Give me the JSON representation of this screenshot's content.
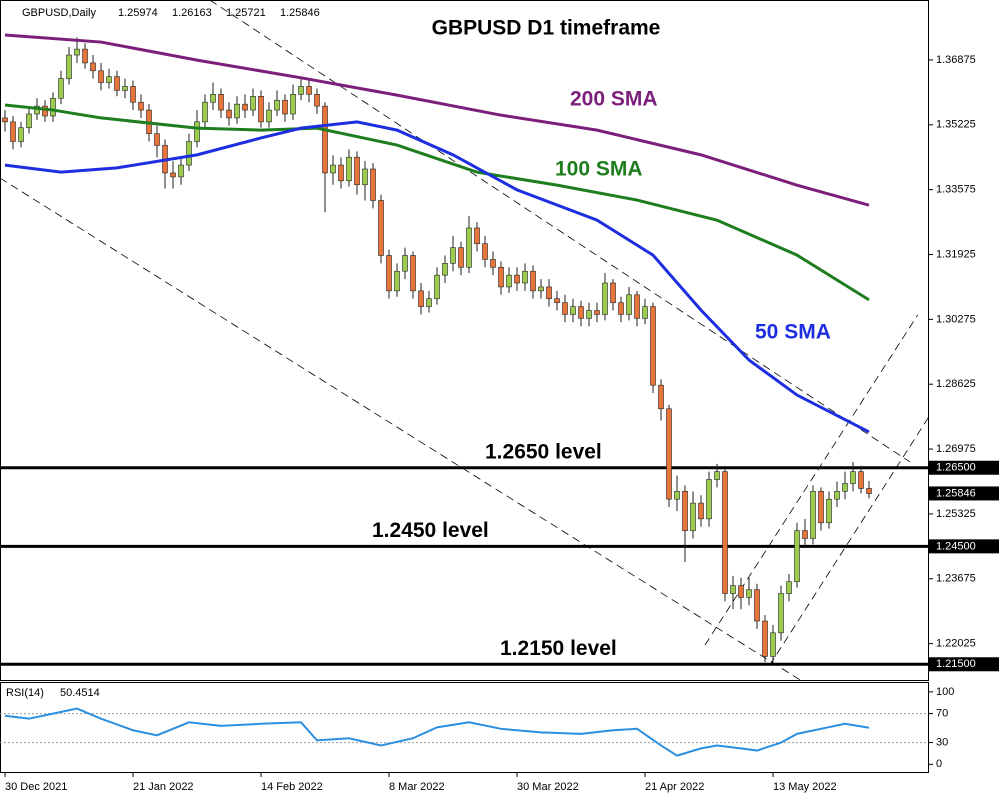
{
  "chart_data": [
    {
      "type": "candlestick",
      "symbol": "GBPUSD,Daily",
      "title": "GBPUSD D1 timeframe",
      "categories": [
        "30 Dec 2021",
        null,
        null,
        null,
        null,
        null,
        null,
        null,
        null,
        null,
        null,
        null,
        null,
        null,
        null,
        null,
        "21 Jan 2022",
        null,
        null,
        null,
        null,
        null,
        null,
        null,
        null,
        null,
        null,
        null,
        null,
        null,
        null,
        null,
        "14 Feb 2022",
        null,
        null,
        null,
        null,
        null,
        null,
        null,
        null,
        null,
        null,
        null,
        null,
        null,
        null,
        null,
        "8 Mar 2022",
        null,
        null,
        null,
        null,
        null,
        null,
        null,
        null,
        null,
        null,
        null,
        null,
        null,
        null,
        null,
        "30 Mar 2022",
        null,
        null,
        null,
        null,
        null,
        null,
        null,
        null,
        null,
        null,
        null,
        null,
        null,
        null,
        null,
        "21 Apr 2022",
        null,
        null,
        null,
        null,
        null,
        null,
        null,
        null,
        null,
        null,
        null,
        null,
        null,
        null,
        null,
        "13 May 2022",
        null,
        null,
        null,
        null,
        null,
        null,
        null,
        null,
        null,
        null,
        null,
        null
      ],
      "xlim": [
        -0.625,
        115.375
      ],
      "open": [
        1.354,
        1.353,
        1.348,
        1.3515,
        1.355,
        1.357,
        1.3545,
        1.359,
        1.364,
        1.37,
        1.3715,
        1.368,
        1.366,
        1.363,
        1.3645,
        1.361,
        1.362,
        1.358,
        1.356,
        1.35,
        1.347,
        1.34,
        1.339,
        1.342,
        1.348,
        1.353,
        1.358,
        1.36,
        1.356,
        1.354,
        1.3575,
        1.356,
        1.3595,
        1.353,
        1.356,
        1.3585,
        1.355,
        1.36,
        1.362,
        1.36,
        1.357,
        1.34,
        1.342,
        1.338,
        1.344,
        1.337,
        1.341,
        1.333,
        1.319,
        1.31,
        1.315,
        1.319,
        1.31,
        1.306,
        1.308,
        1.314,
        1.317,
        1.321,
        1.316,
        1.326,
        1.322,
        1.318,
        1.316,
        1.311,
        1.314,
        1.312,
        1.315,
        1.31,
        1.311,
        1.308,
        1.307,
        1.304,
        1.306,
        1.303,
        1.305,
        1.304,
        1.312,
        1.307,
        1.304,
        1.309,
        1.303,
        1.306,
        1.286,
        1.28,
        1.257,
        1.259,
        1.249,
        1.256,
        1.252,
        1.262,
        1.264,
        1.233,
        1.235,
        1.232,
        1.234,
        1.226,
        1.217,
        1.223,
        1.233,
        1.236,
        1.249,
        1.247,
        1.259,
        1.251,
        1.257,
        1.259,
        1.261,
        1.264,
        1.25974
      ],
      "high": [
        1.356,
        1.3545,
        1.353,
        1.357,
        1.359,
        1.3585,
        1.3605,
        1.366,
        1.372,
        1.3745,
        1.373,
        1.37,
        1.368,
        1.3665,
        1.366,
        1.364,
        1.3635,
        1.36,
        1.3575,
        1.352,
        1.3485,
        1.343,
        1.344,
        1.35,
        1.356,
        1.36,
        1.363,
        1.3615,
        1.358,
        1.3595,
        1.36,
        1.3615,
        1.361,
        1.358,
        1.361,
        1.36,
        1.3625,
        1.3645,
        1.364,
        1.3615,
        1.358,
        1.3445,
        1.344,
        1.346,
        1.3455,
        1.343,
        1.3425,
        1.3345,
        1.3205,
        1.317,
        1.321,
        1.32,
        1.312,
        1.31,
        1.316,
        1.319,
        1.324,
        1.3225,
        1.329,
        1.3275,
        1.324,
        1.32,
        1.3175,
        1.316,
        1.316,
        1.317,
        1.3165,
        1.313,
        1.313,
        1.31,
        1.309,
        1.308,
        1.3075,
        1.307,
        1.307,
        1.3145,
        1.313,
        1.3085,
        1.311,
        1.31,
        1.308,
        1.307,
        1.2875,
        1.281,
        1.263,
        1.2605,
        1.259,
        1.258,
        1.264,
        1.266,
        1.265,
        1.2375,
        1.237,
        1.237,
        1.2355,
        1.2275,
        1.225,
        1.235,
        1.238,
        1.251,
        1.252,
        1.2605,
        1.26,
        1.259,
        1.2615,
        1.264,
        1.2665,
        1.2655,
        1.26163
      ],
      "low": [
        1.3505,
        1.346,
        1.3465,
        1.35,
        1.3535,
        1.353,
        1.353,
        1.3575,
        1.3625,
        1.368,
        1.3665,
        1.364,
        1.361,
        1.3615,
        1.3595,
        1.359,
        1.356,
        1.354,
        1.348,
        1.344,
        1.336,
        1.336,
        1.337,
        1.3405,
        1.3465,
        1.3515,
        1.356,
        1.354,
        1.352,
        1.3525,
        1.354,
        1.3545,
        1.3515,
        1.3515,
        1.3545,
        1.353,
        1.3535,
        1.3585,
        1.358,
        1.355,
        1.33,
        1.337,
        1.336,
        1.3365,
        1.3345,
        1.333,
        1.331,
        1.317,
        1.308,
        1.3085,
        1.313,
        1.308,
        1.304,
        1.3045,
        1.3065,
        1.312,
        1.315,
        1.314,
        1.3145,
        1.32,
        1.316,
        1.314,
        1.309,
        1.3095,
        1.31,
        1.31,
        1.308,
        1.308,
        1.306,
        1.305,
        1.302,
        1.302,
        1.301,
        1.301,
        1.302,
        1.3025,
        1.305,
        1.302,
        1.3025,
        1.301,
        1.3015,
        1.284,
        1.277,
        1.255,
        1.254,
        1.241,
        1.247,
        1.25,
        1.25,
        1.26,
        1.231,
        1.229,
        1.229,
        1.23,
        1.224,
        1.2155,
        1.2155,
        1.221,
        1.231,
        1.2345,
        1.245,
        1.2455,
        1.249,
        1.2495,
        1.255,
        1.257,
        1.259,
        1.2585,
        1.25721
      ],
      "close": [
        1.353,
        1.348,
        1.3515,
        1.355,
        1.357,
        1.3545,
        1.359,
        1.364,
        1.37,
        1.3715,
        1.368,
        1.366,
        1.363,
        1.3645,
        1.361,
        1.362,
        1.358,
        1.356,
        1.35,
        1.347,
        1.34,
        1.339,
        1.342,
        1.348,
        1.353,
        1.358,
        1.36,
        1.356,
        1.354,
        1.3575,
        1.356,
        1.3595,
        1.353,
        1.356,
        1.3585,
        1.355,
        1.36,
        1.362,
        1.36,
        1.357,
        1.34,
        1.342,
        1.338,
        1.344,
        1.337,
        1.341,
        1.333,
        1.319,
        1.31,
        1.315,
        1.319,
        1.31,
        1.306,
        1.308,
        1.314,
        1.317,
        1.321,
        1.316,
        1.326,
        1.322,
        1.318,
        1.316,
        1.311,
        1.314,
        1.312,
        1.315,
        1.31,
        1.311,
        1.308,
        1.307,
        1.304,
        1.306,
        1.303,
        1.305,
        1.304,
        1.312,
        1.307,
        1.304,
        1.309,
        1.303,
        1.306,
        1.286,
        1.28,
        1.257,
        1.259,
        1.249,
        1.256,
        1.252,
        1.262,
        1.264,
        1.233,
        1.235,
        1.232,
        1.234,
        1.226,
        1.217,
        1.223,
        1.233,
        1.236,
        1.249,
        1.247,
        1.259,
        1.251,
        1.257,
        1.259,
        1.261,
        1.264,
        1.25974,
        1.25846
      ],
      "up_color": "#9acd50",
      "down_color": "#e8743b",
      "ylim": [
        1.211,
        1.384
      ],
      "yticks": [
        1.36875,
        1.35225,
        1.33575,
        1.31925,
        1.30275,
        1.28625,
        1.26975,
        1.25325,
        1.23675,
        1.22025
      ],
      "series": [
        {
          "name": "200 SMA",
          "color": "#7b1f7b",
          "x": [
            0,
            12,
            24,
            37,
            49,
            62,
            74,
            87,
            99,
            108
          ],
          "values": [
            1.3751,
            1.3733,
            1.3687,
            1.3642,
            1.3598,
            1.3547,
            1.3509,
            1.3446,
            1.3369,
            1.3318
          ]
        },
        {
          "name": "100 SMA",
          "color": "#1e7d1e",
          "x": [
            0,
            6,
            12,
            24,
            32,
            39,
            49,
            59,
            69,
            79,
            89,
            99,
            108
          ],
          "values": [
            1.3573,
            1.356,
            1.354,
            1.3514,
            1.3509,
            1.3514,
            1.3471,
            1.3402,
            1.3369,
            1.3331,
            1.328,
            1.3191,
            1.3077
          ]
        },
        {
          "name": "50 SMA",
          "color": "#1c2ee0",
          "x": [
            0,
            7,
            14,
            24,
            32,
            37,
            44,
            49,
            56,
            64,
            74,
            81,
            87,
            93,
            99,
            108
          ],
          "values": [
            1.342,
            1.3402,
            1.3413,
            1.3446,
            1.3489,
            1.3514,
            1.353,
            1.3509,
            1.3446,
            1.3357,
            1.328,
            1.3191,
            1.3051,
            1.2924,
            1.2835,
            1.2741
          ]
        }
      ],
      "levels": [
        {
          "value": 1.265,
          "label": "1.2650 level",
          "tag": "1.26500"
        },
        {
          "value": 1.245,
          "label": "1.2450 level",
          "tag": "1.24500"
        },
        {
          "value": 1.215,
          "label": "1.2150 level",
          "tag": "1.21500"
        }
      ],
      "trendlines": [
        {
          "x": [
            25.6,
            113.1
          ],
          "values": [
            1.384,
            1.2665
          ]
        },
        {
          "x": [
            -0.625,
            99.4
          ],
          "values": [
            1.3387,
            1.211
          ]
        },
        {
          "x": [
            95.6,
            115.4
          ],
          "values": [
            1.2148,
            1.2777
          ]
        },
        {
          "x": [
            87.5,
            114.1
          ],
          "values": [
            1.2199,
            1.3039
          ]
        }
      ]
    },
    {
      "type": "line",
      "name": "RSI(14)",
      "ylim": [
        -12,
        115
      ],
      "yticks": [
        0,
        30,
        70,
        100
      ],
      "levels": [
        30,
        70
      ],
      "series": [
        {
          "color": "#2b8fe0",
          "x": [
            0,
            3,
            6,
            9,
            12,
            16,
            19,
            23,
            27,
            32,
            37,
            39,
            43,
            47,
            51,
            54,
            58,
            62,
            67,
            72,
            76,
            79,
            82,
            84,
            87,
            89,
            92,
            94,
            97,
            99,
            102,
            105,
            108
          ],
          "values": [
            67,
            63,
            70,
            77,
            63,
            47,
            40,
            58,
            53,
            56,
            58,
            33,
            36,
            26,
            36,
            51,
            58,
            49,
            44,
            42,
            47,
            49,
            26,
            12,
            22,
            26,
            22,
            19,
            30,
            42,
            49,
            56,
            50.4514
          ]
        }
      ]
    }
  ]
}
